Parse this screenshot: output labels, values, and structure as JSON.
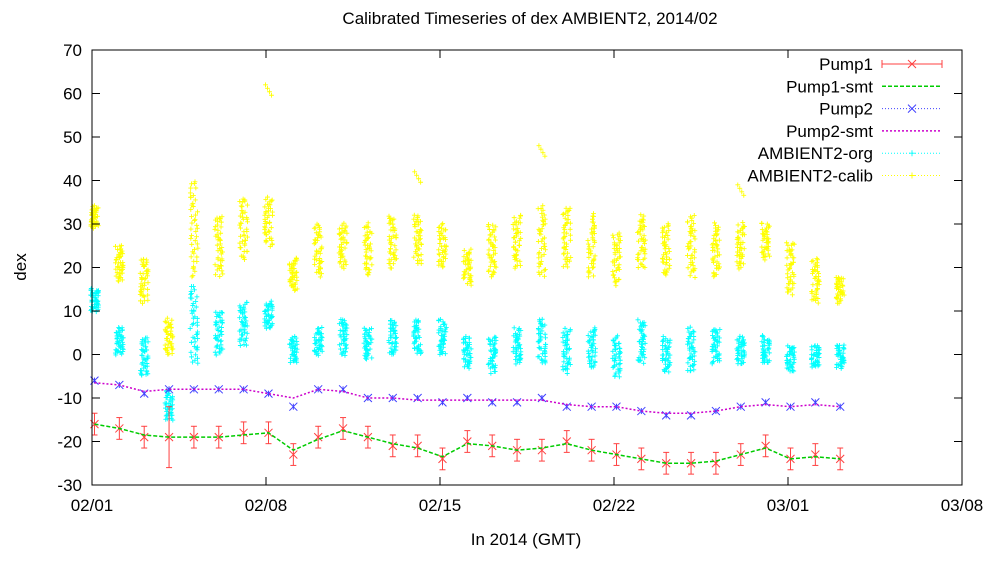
{
  "chart_data": {
    "type": "line",
    "title": "Calibrated Timeseries of dex AMBIENT2, 2014/02",
    "xlabel": "In 2014 (GMT)",
    "ylabel": "dex",
    "xlim": [
      "2014-02-01",
      "2014-03-08"
    ],
    "ylim": [
      -30,
      70
    ],
    "x_ticks": [
      "02/01",
      "02/08",
      "02/15",
      "02/22",
      "03/01",
      "03/08"
    ],
    "y_ticks": [
      -30,
      -20,
      -10,
      0,
      10,
      20,
      30,
      40,
      50,
      60,
      70
    ],
    "grid": false,
    "legend_position": "top-right",
    "series": [
      {
        "name": "Pump1",
        "color": "#ff4040",
        "style": "error-bars-with-x-markers",
        "x": [
          "2014-02-01",
          "2014-02-02",
          "2014-02-03",
          "2014-02-04",
          "2014-02-05",
          "2014-02-06",
          "2014-02-07",
          "2014-02-08",
          "2014-02-09",
          "2014-02-10",
          "2014-02-11",
          "2014-02-12",
          "2014-02-13",
          "2014-02-14",
          "2014-02-15",
          "2014-02-16",
          "2014-02-17",
          "2014-02-18",
          "2014-02-19",
          "2014-02-20",
          "2014-02-21",
          "2014-02-22",
          "2014-02-23",
          "2014-02-24",
          "2014-02-25",
          "2014-02-26",
          "2014-02-27",
          "2014-02-28",
          "2014-03-01",
          "2014-03-02",
          "2014-03-03"
        ],
        "y": [
          -16,
          -17,
          -19,
          -19,
          -19,
          -19,
          -18,
          -18,
          -23,
          -19,
          -17,
          -19,
          -21,
          -21,
          -24,
          -20,
          -21,
          -22,
          -22,
          -20,
          -22,
          -23,
          -24,
          -25,
          -25,
          -25,
          -23,
          -21,
          -24,
          -23,
          -24
        ]
      },
      {
        "name": "Pump1-smt",
        "color": "#00cc00",
        "style": "dashed-line",
        "x": [
          "2014-02-01",
          "2014-02-02",
          "2014-02-03",
          "2014-02-04",
          "2014-02-05",
          "2014-02-06",
          "2014-02-07",
          "2014-02-08",
          "2014-02-09",
          "2014-02-10",
          "2014-02-11",
          "2014-02-12",
          "2014-02-13",
          "2014-02-14",
          "2014-02-15",
          "2014-02-16",
          "2014-02-17",
          "2014-02-18",
          "2014-02-19",
          "2014-02-20",
          "2014-02-21",
          "2014-02-22",
          "2014-02-23",
          "2014-02-24",
          "2014-02-25",
          "2014-02-26",
          "2014-02-27",
          "2014-02-28",
          "2014-03-01",
          "2014-03-02",
          "2014-03-03"
        ],
        "y": [
          -16,
          -17,
          -18.5,
          -19,
          -19,
          -19,
          -18.5,
          -18,
          -22,
          -19.5,
          -17.5,
          -19,
          -20.5,
          -21.5,
          -23.5,
          -20.5,
          -21,
          -22,
          -21.5,
          -20.5,
          -22,
          -23,
          -24,
          -25,
          -25,
          -24.5,
          -23,
          -21.5,
          -24,
          -23.5,
          -24
        ]
      },
      {
        "name": "Pump2",
        "color": "#4040ff",
        "style": "x-markers",
        "x": [
          "2014-02-01",
          "2014-02-02",
          "2014-02-03",
          "2014-02-04",
          "2014-02-05",
          "2014-02-06",
          "2014-02-07",
          "2014-02-08",
          "2014-02-09",
          "2014-02-10",
          "2014-02-11",
          "2014-02-12",
          "2014-02-13",
          "2014-02-14",
          "2014-02-15",
          "2014-02-16",
          "2014-02-17",
          "2014-02-18",
          "2014-02-19",
          "2014-02-20",
          "2014-02-21",
          "2014-02-22",
          "2014-02-23",
          "2014-02-24",
          "2014-02-25",
          "2014-02-26",
          "2014-02-27",
          "2014-02-28",
          "2014-03-01",
          "2014-03-02",
          "2014-03-03"
        ],
        "y": [
          -6,
          -7,
          -9,
          -8,
          -8,
          -8,
          -8,
          -9,
          -12,
          -8,
          -8,
          -10,
          -10,
          -10,
          -11,
          -10,
          -11,
          -11,
          -10,
          -12,
          -12,
          -12,
          -13,
          -14,
          -14,
          -13,
          -12,
          -11,
          -12,
          -11,
          -12
        ]
      },
      {
        "name": "Pump2-smt",
        "color": "#cc00cc",
        "style": "dotted-line",
        "x": [
          "2014-02-01",
          "2014-02-02",
          "2014-02-03",
          "2014-02-04",
          "2014-02-05",
          "2014-02-06",
          "2014-02-07",
          "2014-02-08",
          "2014-02-09",
          "2014-02-10",
          "2014-02-11",
          "2014-02-12",
          "2014-02-13",
          "2014-02-14",
          "2014-02-15",
          "2014-02-16",
          "2014-02-17",
          "2014-02-18",
          "2014-02-19",
          "2014-02-20",
          "2014-02-21",
          "2014-02-22",
          "2014-02-23",
          "2014-02-24",
          "2014-02-25",
          "2014-02-26",
          "2014-02-27",
          "2014-02-28",
          "2014-03-01",
          "2014-03-02",
          "2014-03-03"
        ],
        "y": [
          -6.5,
          -7,
          -8.5,
          -8,
          -8,
          -8,
          -8,
          -9,
          -10,
          -8,
          -8.5,
          -10,
          -10,
          -10.5,
          -10.5,
          -10.5,
          -10.5,
          -10.5,
          -10.5,
          -11.5,
          -12,
          -12,
          -13,
          -13.5,
          -13.5,
          -13,
          -12,
          -11.5,
          -12,
          -11.5,
          -12
        ]
      },
      {
        "name": "AMBIENT2-org",
        "color": "#00ffff",
        "style": "vertical-point-clusters",
        "x": [
          "2014-02-01",
          "2014-02-02",
          "2014-02-03",
          "2014-02-04",
          "2014-02-05",
          "2014-02-06",
          "2014-02-07",
          "2014-02-08",
          "2014-02-09",
          "2014-02-10",
          "2014-02-11",
          "2014-02-12",
          "2014-02-13",
          "2014-02-14",
          "2014-02-15",
          "2014-02-16",
          "2014-02-17",
          "2014-02-18",
          "2014-02-19",
          "2014-02-20",
          "2014-02-21",
          "2014-02-22",
          "2014-02-23",
          "2014-02-24",
          "2014-02-25",
          "2014-02-26",
          "2014-02-27",
          "2014-02-28",
          "2014-03-01",
          "2014-03-02",
          "2014-03-03"
        ],
        "y_low": [
          10,
          0,
          -5,
          -15,
          -2,
          0,
          2,
          6,
          -2,
          0,
          0,
          -1,
          0,
          0,
          0,
          -3,
          -4,
          -2,
          -2,
          -4,
          -3,
          -5,
          -2,
          -4,
          -4,
          -2,
          -2,
          -2,
          -4,
          -3,
          -3
        ],
        "y_high": [
          15,
          6,
          4,
          -8,
          16,
          10,
          12,
          12,
          4,
          6,
          8,
          6,
          8,
          8,
          8,
          4,
          4,
          6,
          8,
          6,
          6,
          4,
          8,
          4,
          6,
          6,
          4,
          4,
          2,
          2,
          2
        ]
      },
      {
        "name": "AMBIENT2-calib",
        "color": "#ffff00",
        "style": "vertical-point-clusters",
        "x": [
          "2014-02-01",
          "2014-02-02",
          "2014-02-03",
          "2014-02-04",
          "2014-02-05",
          "2014-02-06",
          "2014-02-07",
          "2014-02-08",
          "2014-02-09",
          "2014-02-10",
          "2014-02-11",
          "2014-02-12",
          "2014-02-13",
          "2014-02-14",
          "2014-02-15",
          "2014-02-16",
          "2014-02-17",
          "2014-02-18",
          "2014-02-19",
          "2014-02-20",
          "2014-02-21",
          "2014-02-22",
          "2014-02-23",
          "2014-02-24",
          "2014-02-25",
          "2014-02-26",
          "2014-02-27",
          "2014-02-28",
          "2014-03-01",
          "2014-03-02",
          "2014-03-03"
        ],
        "y_low": [
          29,
          17,
          12,
          0,
          18,
          18,
          22,
          25,
          15,
          18,
          20,
          18,
          20,
          21,
          20,
          16,
          18,
          20,
          18,
          20,
          18,
          16,
          20,
          18,
          18,
          18,
          20,
          22,
          14,
          12,
          12
        ],
        "y_high": [
          34,
          25,
          22,
          8,
          40,
          32,
          36,
          36,
          22,
          30,
          30,
          30,
          32,
          32,
          30,
          24,
          30,
          32,
          34,
          34,
          32,
          28,
          32,
          30,
          32,
          30,
          30,
          30,
          26,
          22,
          18
        ],
        "outliers": [
          [
            "2014-02-08",
            62
          ],
          [
            "2014-02-19",
            48
          ],
          [
            "2014-02-14",
            42
          ],
          [
            "2014-02-27",
            39
          ]
        ]
      }
    ]
  }
}
